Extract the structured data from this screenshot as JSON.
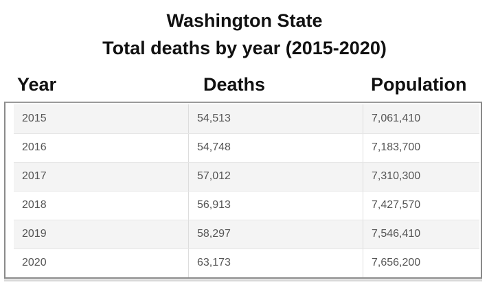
{
  "title": {
    "line1": "Washington State",
    "line2": "Total deaths by year  (2015-2020)"
  },
  "columns": [
    "Year",
    "Deaths",
    "Population"
  ],
  "rows": [
    {
      "year": "2015",
      "deaths": "54,513",
      "population": "7,061,410"
    },
    {
      "year": "2016",
      "deaths": "54,748",
      "population": "7,183,700"
    },
    {
      "year": "2017",
      "deaths": "57,012",
      "population": "7,310,300"
    },
    {
      "year": "2018",
      "deaths": "56,913",
      "population": "7,427,570"
    },
    {
      "year": "2019",
      "deaths": "58,297",
      "population": "7,546,410"
    },
    {
      "year": "2020",
      "deaths": "63,173",
      "population": "7,656,200"
    }
  ],
  "chart_data": {
    "type": "table",
    "title": "Washington State Total deaths by year  (2015-2020)",
    "columns": [
      "Year",
      "Deaths",
      "Population"
    ],
    "rows": [
      [
        2015,
        54513,
        7061410
      ],
      [
        2016,
        54748,
        7183700
      ],
      [
        2017,
        57012,
        7310300
      ],
      [
        2018,
        56913,
        7427570
      ],
      [
        2019,
        58297,
        7546410
      ],
      [
        2020,
        63173,
        7656200
      ]
    ]
  }
}
